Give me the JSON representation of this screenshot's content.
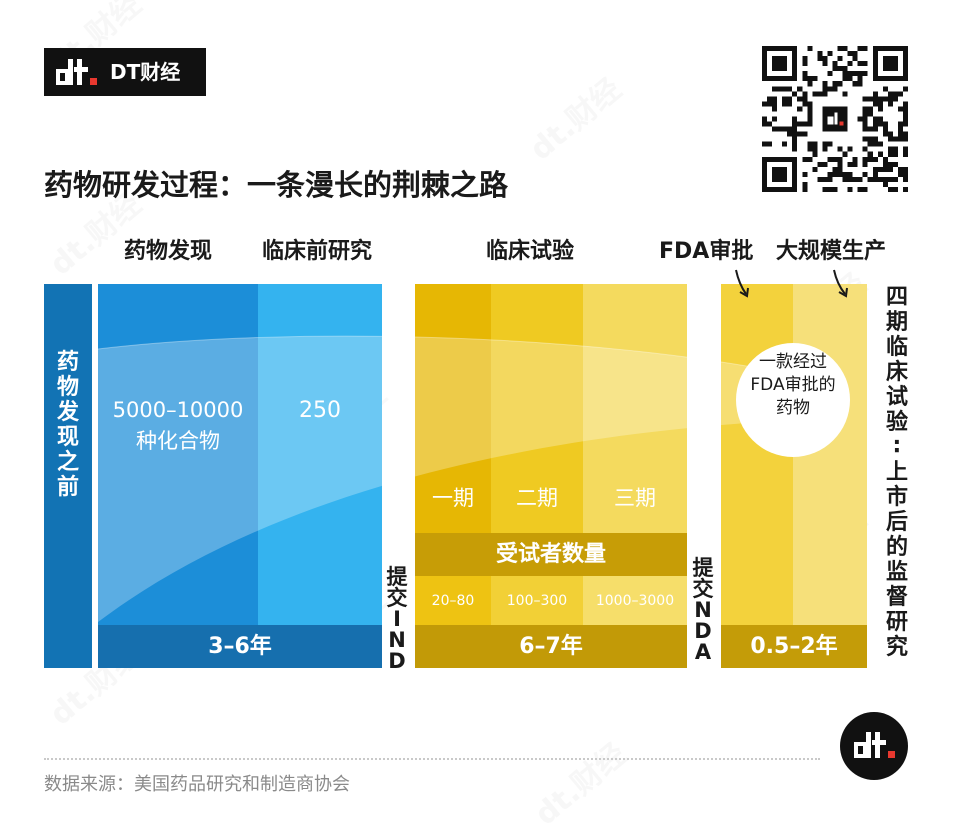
{
  "brand": {
    "name": "DT财经",
    "watermark": "dt.财经"
  },
  "title": "药物研发过程：一条漫长的荆棘之路",
  "stages": {
    "discovery": "药物发现",
    "preclinical": "临床前研究",
    "clinical": "临床试验",
    "fda": "FDA审批",
    "manufacturing": "大规模生产"
  },
  "side_labels": {
    "pre_discovery": "药物发现之前",
    "submit_ind": "提交IND",
    "submit_nda": "提交NDA",
    "phase4": "四期临床试验：上市后的监督研究"
  },
  "discovery": {
    "compounds_range": "5000–10000",
    "compounds_label": "种化合物"
  },
  "preclinical": {
    "count": "250"
  },
  "clinical": {
    "phases": [
      "一期",
      "二期",
      "三期"
    ],
    "subjects_label": "受试者数量",
    "subject_counts": [
      "20–80",
      "100–300",
      "1000–3000"
    ]
  },
  "durations": {
    "discovery_preclinical": "3–6年",
    "clinical": "6–7年",
    "fda_manufacturing": "0.5–2年"
  },
  "result": {
    "line1": "一款经过",
    "line2": "FDA审批的",
    "line3": "药物"
  },
  "source": "数据来源：美国药品研究和制造商协会",
  "colors": {
    "pre_bar": "#1273b4",
    "discovery": "#1c8ed8",
    "preclinical": "#34b3ef",
    "blue_duration": "#166fae",
    "phase1": "#e6b704",
    "phase2": "#efca22",
    "phase3": "#f4da5e",
    "gold_band": "#c79d06",
    "fda": "#f3d23c",
    "manufacturing": "#f6e07a"
  }
}
